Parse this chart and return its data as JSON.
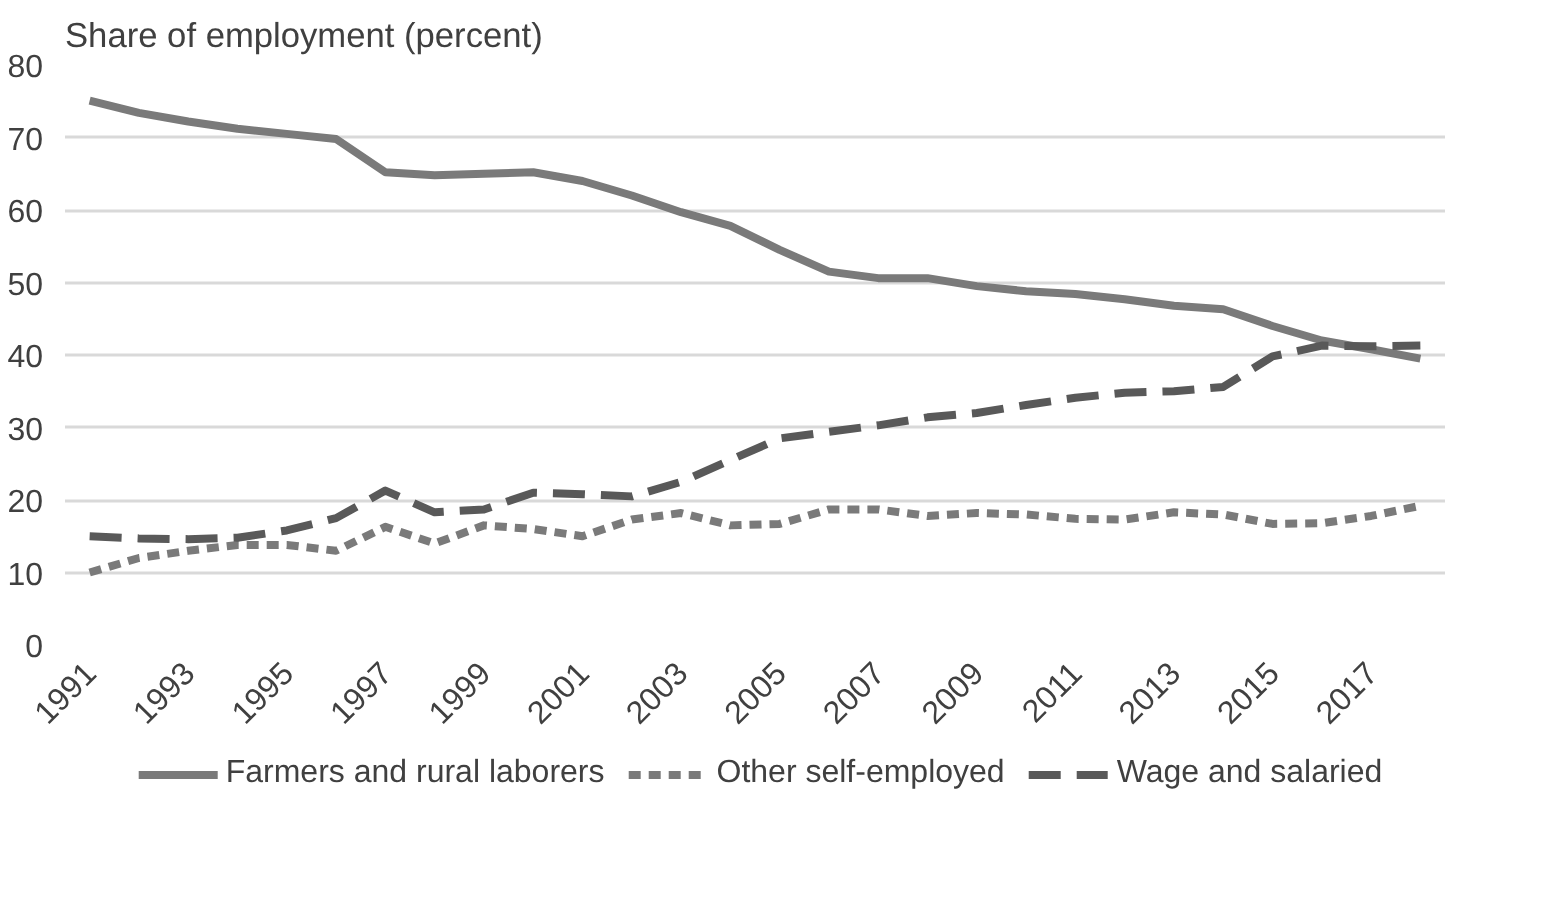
{
  "chart_data": {
    "type": "line",
    "ylabel": "Share of employment (percent)",
    "x": [
      1991,
      1992,
      1993,
      1994,
      1995,
      1996,
      1997,
      1998,
      1999,
      2000,
      2001,
      2002,
      2003,
      2004,
      2005,
      2006,
      2007,
      2008,
      2009,
      2010,
      2011,
      2012,
      2013,
      2014,
      2015,
      2016,
      2017,
      2018
    ],
    "xlim": [
      1990.5,
      2018.5
    ],
    "xticks": [
      1991,
      1993,
      1995,
      1997,
      1999,
      2001,
      2003,
      2005,
      2007,
      2009,
      2011,
      2013,
      2015,
      2017
    ],
    "ylim": [
      0,
      80
    ],
    "yticks": [
      0,
      10,
      20,
      30,
      40,
      50,
      60,
      70,
      80
    ],
    "grid": "y",
    "legend": "bottom",
    "series": [
      {
        "name": "Farmers and rural laborers",
        "color": "#7a7a7a",
        "line_style": "solid",
        "values": [
          75.1,
          73.4,
          72.2,
          71.2,
          70.5,
          69.8,
          65.2,
          64.8,
          65.0,
          65.2,
          64.0,
          62.0,
          59.7,
          57.8,
          54.5,
          51.5,
          50.6,
          50.6,
          49.5,
          48.8,
          48.4,
          47.7,
          46.8,
          46.3,
          44.0,
          42.0,
          40.8,
          39.5
        ]
      },
      {
        "name": "Other self-employed",
        "color": "#7a7a7a",
        "line_style": "dotted",
        "values": [
          10.0,
          12.0,
          13.0,
          13.8,
          13.8,
          13.0,
          16.3,
          14.0,
          16.5,
          16.0,
          15.0,
          17.3,
          18.2,
          16.5,
          16.7,
          18.7,
          18.7,
          17.8,
          18.2,
          18.0,
          17.4,
          17.3,
          18.3,
          18.0,
          16.7,
          16.8,
          17.8,
          19.2
        ]
      },
      {
        "name": "Wage and salaried",
        "color": "#595959",
        "line_style": "dashed",
        "values": [
          15.0,
          14.7,
          14.6,
          14.8,
          15.8,
          17.5,
          21.3,
          18.3,
          18.7,
          21.0,
          20.8,
          20.5,
          22.5,
          25.5,
          28.5,
          29.4,
          30.3,
          31.4,
          32.0,
          33.1,
          34.1,
          34.8,
          35.0,
          35.6,
          39.8,
          41.3,
          41.2,
          41.3
        ]
      }
    ]
  }
}
